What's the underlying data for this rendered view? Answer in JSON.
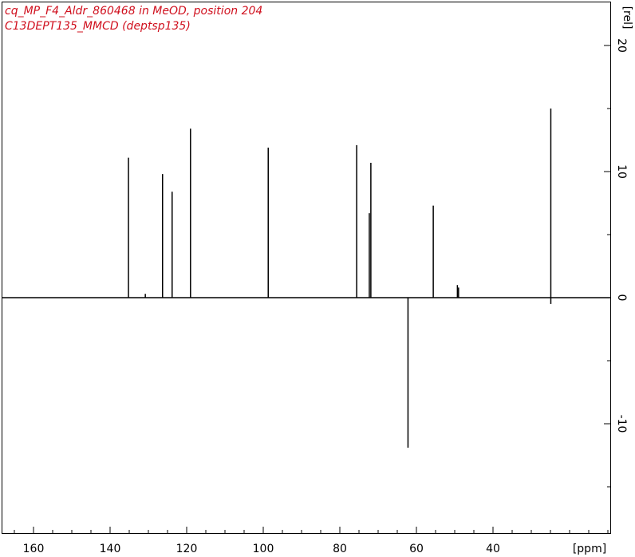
{
  "header": {
    "line1": "cq_MP_F4_Aldr_860468 in MeOD, position 204",
    "line2": "C13DEPT135_MMCD (deptsp135)"
  },
  "colors": {
    "title": "#d0101e",
    "trace": "#000000",
    "frame": "#000000",
    "background": "#ffffff"
  },
  "chart_data": {
    "type": "line",
    "title": "",
    "xlabel": "[ppm]",
    "ylabel": "[rel]",
    "x_direction": "reversed",
    "xlim": [
      167,
      3
    ],
    "ylim": [
      -18.5,
      23
    ],
    "grid": false,
    "legend": "none",
    "x_ticks": [
      {
        "value": 160,
        "label": "160"
      },
      {
        "value": 140,
        "label": "140"
      },
      {
        "value": 120,
        "label": "120"
      },
      {
        "value": 100,
        "label": "100"
      },
      {
        "value": 80,
        "label": "80"
      },
      {
        "value": 60,
        "label": "60"
      },
      {
        "value": 40,
        "label": "40"
      }
    ],
    "x_minor_step": 5,
    "y_ticks": [
      {
        "value": 20,
        "label": "20"
      },
      {
        "value": 10,
        "label": "10"
      },
      {
        "value": 0,
        "label": "0"
      },
      {
        "value": -10,
        "label": "-10"
      }
    ],
    "y_minor_step": 5,
    "peaks": [
      {
        "ppm": 135.2,
        "intensity": 11.1
      },
      {
        "ppm": 130.8,
        "intensity": 0.3
      },
      {
        "ppm": 126.3,
        "intensity": 9.8
      },
      {
        "ppm": 123.8,
        "intensity": 8.4
      },
      {
        "ppm": 119.0,
        "intensity": 13.4
      },
      {
        "ppm": 98.7,
        "intensity": 11.9
      },
      {
        "ppm": 75.6,
        "intensity": 12.1
      },
      {
        "ppm": 72.3,
        "intensity": 6.7
      },
      {
        "ppm": 71.9,
        "intensity": 10.7
      },
      {
        "ppm": 62.2,
        "intensity": -11.9
      },
      {
        "ppm": 55.6,
        "intensity": 7.3
      },
      {
        "ppm": 49.3,
        "intensity": 1.0
      },
      {
        "ppm": 49.0,
        "intensity": 0.8
      },
      {
        "ppm": 24.9,
        "intensity": 15.0
      },
      {
        "ppm": 24.9,
        "intensity": -0.5
      }
    ]
  }
}
